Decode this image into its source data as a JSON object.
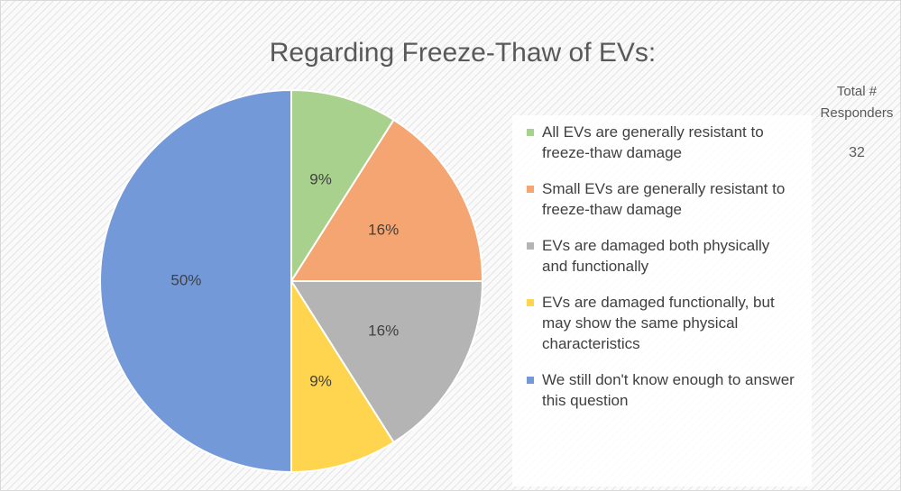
{
  "chart_data": {
    "type": "pie",
    "title": "Regarding Freeze-Thaw of EVs:",
    "categories": [
      "All EVs are generally resistant to freeze-thaw damage",
      "Small EVs are generally resistant to freeze-thaw damage",
      "EVs are damaged both physically and functionally",
      "EVs are damaged functionally, but may show the same physical characteristics",
      "We still don't know enough to answer this question"
    ],
    "values": [
      9,
      16,
      16,
      9,
      50
    ],
    "value_labels": [
      "9%",
      "16%",
      "16%",
      "9%",
      "50%"
    ],
    "colors": [
      "#a9d18e",
      "#f4a571",
      "#b4b4b4",
      "#ffd54f",
      "#7399d8"
    ],
    "legend": "right",
    "total": {
      "label": "Total # Responders",
      "value": 32
    }
  }
}
